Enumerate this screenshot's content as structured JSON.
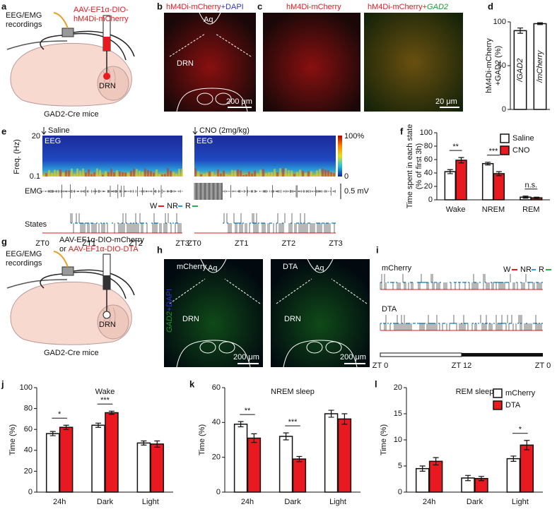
{
  "panels": {
    "letters": [
      "a",
      "b",
      "c",
      "d",
      "e",
      "f",
      "g",
      "h",
      "i",
      "j",
      "k",
      "l"
    ],
    "a": {
      "recording": [
        "EEG/EMG",
        "recordings"
      ],
      "virus": [
        "AAV-EF1α-DIO-",
        "hM4Di-mCherry"
      ],
      "site": "DRN",
      "mouse": "GAD2-Cre mice"
    },
    "b": {
      "title": [
        "hM4Di-mCherry",
        "+DAPI"
      ],
      "aq": "Aq",
      "drn": "DRN",
      "scale": "200 μm"
    },
    "c": {
      "left": "hM4Di-mCherry",
      "right": [
        "hM4Di-mCherry+",
        "GAD2"
      ],
      "scale": "20 μm"
    },
    "e": {
      "conditions": [
        "Saline",
        "CNO (2mg/kg)"
      ],
      "eeg": "EEG",
      "freq_label": "Freq. (Hz)",
      "freq_top": "20",
      "freq_bottom": "0.1",
      "colorbar": [
        "100%",
        "0"
      ],
      "emg": "EMG",
      "emg_scale": "0.5 mV",
      "states": "States",
      "state_keys": [
        "W",
        "NR",
        "R"
      ],
      "zt": [
        "ZT0",
        "ZT1",
        "ZT2",
        "ZT3"
      ]
    },
    "g": {
      "recording": [
        "EEG/EMG",
        "recordings"
      ],
      "virus_a": "AAV-EF1α-DIO-mCherry",
      "or": "or",
      "virus_b": "AAV-EF1α-DIO-DTA",
      "site": "DRN",
      "mouse": "GAD2-Cre mice"
    },
    "h": {
      "titles": [
        "mCherry",
        "DTA"
      ],
      "aq": "Aq",
      "drn": "DRN",
      "stain": [
        "GAD2",
        "+DAPI"
      ],
      "scale": "200 μm"
    },
    "i": {
      "groups": [
        "mCherry",
        "DTA"
      ],
      "state_keys": [
        "W",
        "NR",
        "R"
      ],
      "zt": [
        "ZT 0",
        "ZT 12",
        "ZT 0"
      ]
    }
  },
  "chart_data": [
    {
      "type": "bar",
      "ylabel": [
        "hM4Di-mCherry",
        "+GAD2 (%)"
      ],
      "categories": [
        "/GAD2",
        "/mCherry"
      ],
      "category_inside": true,
      "series": [
        {
          "color": "#ffffff",
          "values": [
            90,
            98
          ],
          "errors": [
            3,
            1
          ]
        }
      ],
      "ylim": [
        0,
        100
      ],
      "yticks": [
        0,
        50,
        100
      ]
    },
    {
      "type": "bar",
      "ylabel": [
        "Time spent in each state",
        "(% of first 3h)"
      ],
      "categories": [
        "Wake",
        "NREM",
        "REM"
      ],
      "annotations": [
        "**",
        "***",
        "n.s."
      ],
      "series": [
        {
          "name": "Saline",
          "color": "#ffffff",
          "values": [
            42,
            54,
            4
          ],
          "errors": [
            3,
            2,
            1.5
          ]
        },
        {
          "name": "CNO",
          "color": "#e8191f",
          "values": [
            59,
            39,
            3
          ],
          "errors": [
            4,
            3,
            1
          ]
        }
      ],
      "ylim": [
        0,
        100
      ],
      "yticks": [
        0,
        20,
        40,
        60,
        80,
        100
      ],
      "legend": "upper right"
    },
    {
      "type": "bar",
      "title": "Wake",
      "ylabel": [
        "Time (%)"
      ],
      "categories": [
        "24h",
        "Dark",
        "Light"
      ],
      "annotations": [
        "*",
        "***",
        null
      ],
      "series": [
        {
          "color": "#ffffff",
          "values": [
            56,
            64,
            47
          ],
          "errors": [
            2,
            2,
            2
          ]
        },
        {
          "color": "#e8191f",
          "values": [
            62,
            76,
            46
          ],
          "errors": [
            2,
            1.5,
            3
          ]
        }
      ],
      "ylim": [
        0,
        100
      ],
      "yticks": [
        0,
        20,
        40,
        60,
        80,
        100
      ]
    },
    {
      "type": "bar",
      "title": "NREM sleep",
      "ylabel": [
        "Time (%)"
      ],
      "categories": [
        "24h",
        "Dark",
        "Light"
      ],
      "annotations": [
        "**",
        "***",
        null
      ],
      "series": [
        {
          "color": "#ffffff",
          "values": [
            39,
            32,
            45
          ],
          "errors": [
            1.5,
            2,
            2
          ]
        },
        {
          "color": "#e8191f",
          "values": [
            31,
            19,
            42
          ],
          "errors": [
            2.5,
            1.5,
            3
          ]
        }
      ],
      "ylim": [
        0,
        60
      ],
      "yticks": [
        0,
        20,
        40,
        60
      ]
    },
    {
      "type": "bar",
      "title": "REM sleep",
      "ylabel": [
        "Time (%)"
      ],
      "categories": [
        "24h",
        "Dark",
        "Light"
      ],
      "annotations": [
        null,
        null,
        "*"
      ],
      "series": [
        {
          "name": "mCherry",
          "color": "#ffffff",
          "values": [
            4.5,
            2.7,
            6.4
          ],
          "errors": [
            0.5,
            0.5,
            0.5
          ]
        },
        {
          "name": "DTA",
          "color": "#e8191f",
          "values": [
            5.9,
            2.6,
            9.0
          ],
          "errors": [
            0.7,
            0.4,
            0.9
          ]
        }
      ],
      "ylim": [
        0,
        20
      ],
      "yticks": [
        0,
        5,
        10,
        15,
        20
      ],
      "legend": "upper right"
    }
  ]
}
